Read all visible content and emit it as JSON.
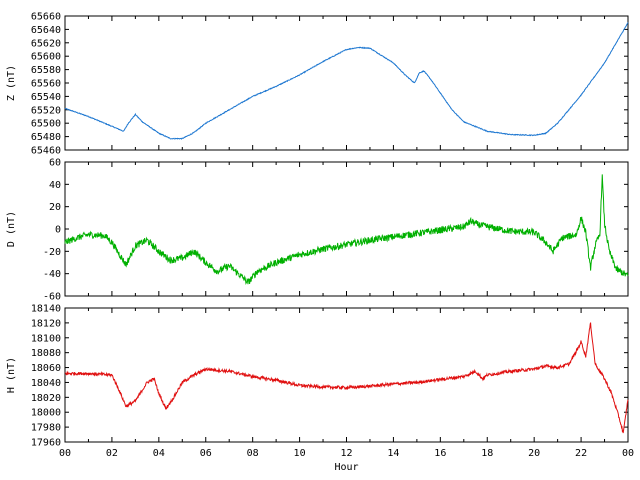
{
  "chart_data": {
    "type": "line",
    "x_label": "Hour",
    "x_ticks": [
      "00",
      "02",
      "04",
      "06",
      "08",
      "10",
      "12",
      "14",
      "16",
      "18",
      "20",
      "22",
      "00"
    ],
    "x_range_hours": [
      0,
      24
    ],
    "grid": false,
    "panels": [
      {
        "id": "Z",
        "ylabel": "Z (nT)",
        "color": "#1f78d1",
        "ylim": [
          65460,
          65660
        ],
        "yticks": [
          65460,
          65480,
          65500,
          65520,
          65540,
          65560,
          65580,
          65600,
          65620,
          65640,
          65660
        ],
        "noise": 0.6,
        "points": [
          [
            0,
            65522
          ],
          [
            1,
            65510
          ],
          [
            2.5,
            65488
          ],
          [
            2.7,
            65500
          ],
          [
            3.0,
            65513
          ],
          [
            3.3,
            65502
          ],
          [
            4,
            65485
          ],
          [
            4.5,
            65477
          ],
          [
            5,
            65477
          ],
          [
            5.5,
            65486
          ],
          [
            6,
            65500
          ],
          [
            7,
            65520
          ],
          [
            8,
            65540
          ],
          [
            9,
            65555
          ],
          [
            10,
            65572
          ],
          [
            11,
            65592
          ],
          [
            12,
            65610
          ],
          [
            12.5,
            65613
          ],
          [
            13,
            65612
          ],
          [
            14,
            65590
          ],
          [
            14.5,
            65572
          ],
          [
            14.9,
            65560
          ],
          [
            15.1,
            65575
          ],
          [
            15.3,
            65578
          ],
          [
            15.6,
            65565
          ],
          [
            16,
            65545
          ],
          [
            16.5,
            65520
          ],
          [
            17,
            65502
          ],
          [
            18,
            65488
          ],
          [
            19,
            65483
          ],
          [
            20,
            65482
          ],
          [
            20.5,
            65485
          ],
          [
            21,
            65500
          ],
          [
            22,
            65542
          ],
          [
            23,
            65590
          ],
          [
            24,
            65650
          ]
        ]
      },
      {
        "id": "D",
        "ylabel": "D (nT)",
        "color": "#00b000",
        "ylim": [
          -60,
          60
        ],
        "yticks": [
          -60,
          -40,
          -20,
          0,
          20,
          40,
          60
        ],
        "noise": 3,
        "points": [
          [
            0,
            -12
          ],
          [
            0.5,
            -8
          ],
          [
            1,
            -5
          ],
          [
            1.7,
            -6
          ],
          [
            2,
            -12
          ],
          [
            2.3,
            -22
          ],
          [
            2.6,
            -32
          ],
          [
            3,
            -15
          ],
          [
            3.5,
            -10
          ],
          [
            4,
            -20
          ],
          [
            4.5,
            -28
          ],
          [
            5,
            -26
          ],
          [
            5.5,
            -20
          ],
          [
            6,
            -30
          ],
          [
            6.5,
            -38
          ],
          [
            7,
            -33
          ],
          [
            7.5,
            -42
          ],
          [
            7.8,
            -48
          ],
          [
            8.2,
            -38
          ],
          [
            9,
            -30
          ],
          [
            10,
            -23
          ],
          [
            11,
            -18
          ],
          [
            12,
            -14
          ],
          [
            13,
            -10
          ],
          [
            14,
            -7
          ],
          [
            15,
            -4
          ],
          [
            16,
            -1
          ],
          [
            17,
            2
          ],
          [
            17.3,
            7
          ],
          [
            17.6,
            4
          ],
          [
            18,
            2
          ],
          [
            18.5,
            0
          ],
          [
            19,
            -2
          ],
          [
            20,
            -3
          ],
          [
            20.5,
            -12
          ],
          [
            20.8,
            -20
          ],
          [
            21.2,
            -8
          ],
          [
            21.8,
            -5
          ],
          [
            22,
            10
          ],
          [
            22.2,
            -3
          ],
          [
            22.4,
            -35
          ],
          [
            22.6,
            -15
          ],
          [
            22.8,
            -5
          ],
          [
            22.9,
            48
          ],
          [
            23.0,
            5
          ],
          [
            23.2,
            -20
          ],
          [
            23.5,
            -36
          ],
          [
            24,
            -42
          ]
        ]
      },
      {
        "id": "H",
        "ylabel": "H (nT)",
        "color": "#e01010",
        "ylim": [
          17960,
          18140
        ],
        "yticks": [
          17960,
          17980,
          18000,
          18020,
          18040,
          18060,
          18080,
          18100,
          18120,
          18140
        ],
        "noise": 2,
        "points": [
          [
            0,
            18052
          ],
          [
            1,
            18052
          ],
          [
            2,
            18050
          ],
          [
            2.3,
            18030
          ],
          [
            2.6,
            18008
          ],
          [
            3,
            18015
          ],
          [
            3.5,
            18040
          ],
          [
            3.8,
            18045
          ],
          [
            4,
            18025
          ],
          [
            4.3,
            18005
          ],
          [
            4.6,
            18018
          ],
          [
            5,
            18040
          ],
          [
            5.5,
            18050
          ],
          [
            6,
            18058
          ],
          [
            7,
            18055
          ],
          [
            8,
            18048
          ],
          [
            9,
            18043
          ],
          [
            10,
            18036
          ],
          [
            11,
            18034
          ],
          [
            12,
            18033
          ],
          [
            13,
            18035
          ],
          [
            14,
            18038
          ],
          [
            15,
            18040
          ],
          [
            16,
            18044
          ],
          [
            17,
            18048
          ],
          [
            17.5,
            18055
          ],
          [
            17.8,
            18045
          ],
          [
            18,
            18050
          ],
          [
            19,
            18055
          ],
          [
            20,
            18058
          ],
          [
            20.5,
            18062
          ],
          [
            21,
            18060
          ],
          [
            21.5,
            18065
          ],
          [
            21.9,
            18088
          ],
          [
            22,
            18095
          ],
          [
            22.2,
            18075
          ],
          [
            22.4,
            18120
          ],
          [
            22.6,
            18065
          ],
          [
            23,
            18045
          ],
          [
            23.3,
            18025
          ],
          [
            23.6,
            17995
          ],
          [
            23.8,
            17972
          ],
          [
            24,
            18018
          ]
        ]
      }
    ]
  }
}
